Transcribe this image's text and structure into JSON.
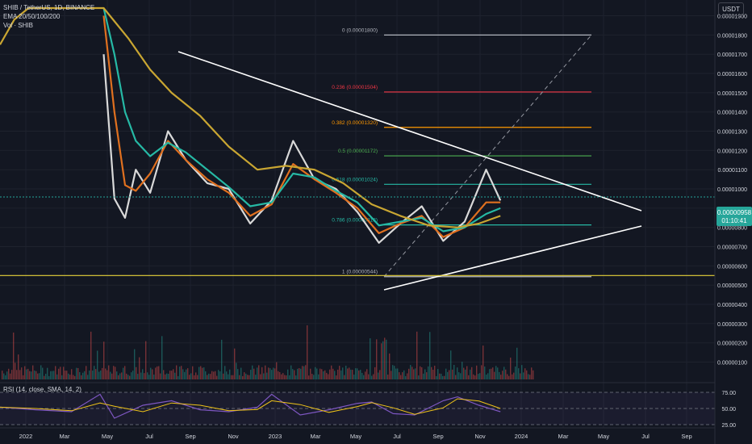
{
  "header": {
    "symbol_line": "SHIB / TetherUS, 1D, BINANCE",
    "ema_line": "EMA 20/50/100/200",
    "vol_line": "Vol · SHIB",
    "currency": "USDT"
  },
  "rsi": {
    "label": "RSI (14, close, SMA, 14, 2)",
    "levels": [
      "75.00",
      "50.00",
      "25.00"
    ]
  },
  "last_price": {
    "value": "0.00000958",
    "countdown": "01:10:41"
  },
  "colors": {
    "background": "#131722",
    "grid": "#1e222d",
    "text": "#d1d4dc",
    "ema20": "#d9d9d9",
    "ema50": "#e0701f",
    "ema100": "#26b9a5",
    "ema200": "#c9a632",
    "triangle": "#ffffff",
    "rsi_line": "#7e57c2",
    "rsi_ma": "#f0c419",
    "support": "#e6d23a",
    "price_tag": "#26a69a"
  },
  "chart_data": {
    "type": "line",
    "title": "SHIB / TetherUS, 1D, BINANCE",
    "x_ticks": [
      "2022",
      "Mar",
      "May",
      "Jul",
      "Sep",
      "Nov",
      "2023",
      "Mar",
      "May",
      "Jul",
      "Sep",
      "Nov",
      "2024",
      "Mar",
      "May",
      "Jul",
      "Sep"
    ],
    "y_ticks": [
      "0.00001900",
      "0.00001800",
      "0.00001700",
      "0.00001600",
      "0.00001500",
      "0.00001400",
      "0.00001300",
      "0.00001200",
      "0.00001100",
      "0.00001000",
      "0.00000900",
      "0.00000800",
      "0.00000700",
      "0.00000600",
      "0.00000500",
      "0.00000400",
      "0.00000300",
      "0.00000200",
      "0.00000100"
    ],
    "ylim": [
      1e-07,
      1.94e-05
    ],
    "fib_levels": [
      {
        "ratio": "0",
        "price": 1.8e-05,
        "label": "0 (0.00001800)",
        "color": "#b2b5be"
      },
      {
        "ratio": "0.236",
        "price": 1.504e-05,
        "label": "0.236 (0.00001504)",
        "color": "#f23645"
      },
      {
        "ratio": "0.382",
        "price": 1.32e-05,
        "label": "0.382 (0.00001320)",
        "color": "#ff9800"
      },
      {
        "ratio": "0.5",
        "price": 1.172e-05,
        "label": "0.5 (0.00001172)",
        "color": "#4caf50"
      },
      {
        "ratio": "0.618",
        "price": 1.024e-05,
        "label": "0.618 (0.00001024)",
        "color": "#26b9a5"
      },
      {
        "ratio": "0.786",
        "price": 8.13e-06,
        "label": "0.786 (0.00000813)",
        "color": "#26b9a5"
      },
      {
        "ratio": "1",
        "price": 5.44e-06,
        "label": "1 (0.00000544)",
        "color": "#b2b5be"
      }
    ],
    "support_price": 5.5e-06,
    "last_price": 9.58e-06,
    "series": [
      {
        "name": "EMA 20",
        "x": [
          0.145,
          0.16,
          0.175,
          0.19,
          0.21,
          0.235,
          0.26,
          0.29,
          0.32,
          0.35,
          0.38,
          0.41,
          0.44,
          0.47,
          0.5,
          0.53,
          0.56,
          0.59,
          0.62,
          0.65,
          0.68,
          0.7
        ],
        "y": [
          1.7e-05,
          9.5e-06,
          8.5e-06,
          1.1e-05,
          9.8e-06,
          1.3e-05,
          1.15e-05,
          1.03e-05,
          1e-05,
          8.2e-06,
          9.4e-06,
          1.25e-05,
          1.05e-05,
          1e-05,
          8.8e-06,
          7.2e-06,
          8.2e-06,
          9.1e-06,
          7.3e-06,
          8.3e-06,
          1.1e-05,
          9.4e-06
        ]
      },
      {
        "name": "EMA 50",
        "x": [
          0.145,
          0.16,
          0.175,
          0.19,
          0.21,
          0.235,
          0.26,
          0.29,
          0.32,
          0.35,
          0.38,
          0.41,
          0.44,
          0.47,
          0.5,
          0.53,
          0.56,
          0.59,
          0.62,
          0.65,
          0.68,
          0.7
        ],
        "y": [
          1.9e-05,
          1.4e-05,
          1.02e-05,
          9.9e-06,
          1.08e-05,
          1.25e-05,
          1.15e-05,
          1.05e-05,
          9.8e-06,
          8.6e-06,
          9.2e-06,
          1.13e-05,
          1.05e-05,
          9.8e-06,
          9e-06,
          7.7e-06,
          8.2e-06,
          8.6e-06,
          7.5e-06,
          8e-06,
          9.3e-06,
          9.3e-06
        ]
      },
      {
        "name": "EMA 100",
        "x": [
          0.145,
          0.16,
          0.175,
          0.19,
          0.21,
          0.235,
          0.26,
          0.29,
          0.32,
          0.35,
          0.38,
          0.41,
          0.44,
          0.47,
          0.5,
          0.53,
          0.56,
          0.59,
          0.62,
          0.65,
          0.68,
          0.7
        ],
        "y": [
          1.94e-05,
          1.7e-05,
          1.4e-05,
          1.25e-05,
          1.17e-05,
          1.24e-05,
          1.19e-05,
          1.1e-05,
          1.01e-05,
          9.1e-06,
          9.3e-06,
          1.08e-05,
          1.06e-05,
          9.9e-06,
          9.3e-06,
          8.1e-06,
          8.3e-06,
          8.5e-06,
          7.8e-06,
          8e-06,
          8.7e-06,
          9e-06
        ]
      },
      {
        "name": "EMA 200",
        "x": [
          0.0,
          0.02,
          0.04,
          0.07,
          0.1,
          0.145,
          0.18,
          0.21,
          0.24,
          0.28,
          0.32,
          0.36,
          0.4,
          0.44,
          0.48,
          0.52,
          0.56,
          0.6,
          0.64,
          0.67,
          0.7
        ],
        "y": [
          1.75e-05,
          1.88e-05,
          1.94e-05,
          1.94e-05,
          1.94e-05,
          1.94e-05,
          1.78e-05,
          1.62e-05,
          1.5e-05,
          1.38e-05,
          1.22e-05,
          1.1e-05,
          1.12e-05,
          1.1e-05,
          1.03e-05,
          9.2e-06,
          8.6e-06,
          8.1e-06,
          8e-06,
          8.2e-06,
          8.6e-06
        ]
      },
      {
        "name": "RSI",
        "x": [
          0.0,
          0.05,
          0.1,
          0.14,
          0.16,
          0.2,
          0.24,
          0.28,
          0.32,
          0.36,
          0.38,
          0.42,
          0.46,
          0.5,
          0.52,
          0.55,
          0.58,
          0.62,
          0.64,
          0.67,
          0.7
        ],
        "y": [
          52,
          48,
          45,
          72,
          35,
          55,
          62,
          48,
          45,
          52,
          72,
          40,
          48,
          58,
          60,
          42,
          40,
          62,
          68,
          55,
          45
        ]
      }
    ]
  }
}
